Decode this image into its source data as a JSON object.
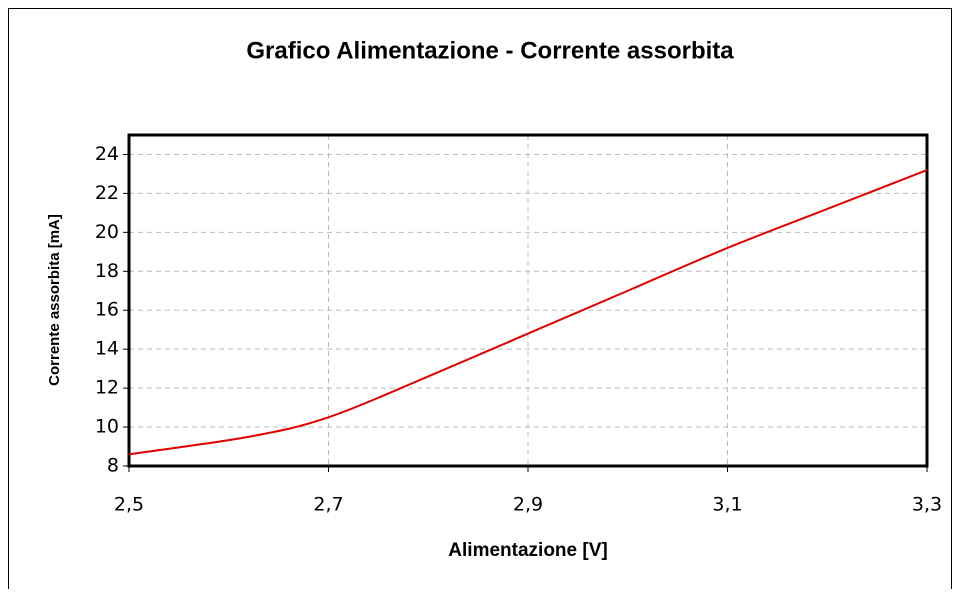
{
  "chart_data": {
    "type": "line",
    "title": "Grafico Alimentazione - Corrente assorbita",
    "xlabel": "Alimentazione [V]",
    "ylabel": "Corrente assorbita [mA]",
    "x": [
      2.5,
      2.62,
      2.7,
      2.8,
      2.9,
      3.0,
      3.1,
      3.2,
      3.3
    ],
    "values": [
      8.6,
      9.5,
      10.5,
      12.6,
      14.8,
      17.0,
      19.2,
      21.2,
      23.2
    ],
    "color": "#e00000",
    "xlim": [
      2.5,
      3.3
    ],
    "xticks": [
      {
        "value": 2.5,
        "label": "2,5"
      },
      {
        "value": 2.7,
        "label": "2,7"
      },
      {
        "value": 2.9,
        "label": "2,9"
      },
      {
        "value": 3.1,
        "label": "3,1"
      },
      {
        "value": 3.3,
        "label": "3,3"
      }
    ],
    "ylim": [
      8,
      25
    ],
    "yticks": [
      8,
      10,
      12,
      14,
      16,
      18,
      20,
      22,
      24
    ],
    "grid": true
  }
}
